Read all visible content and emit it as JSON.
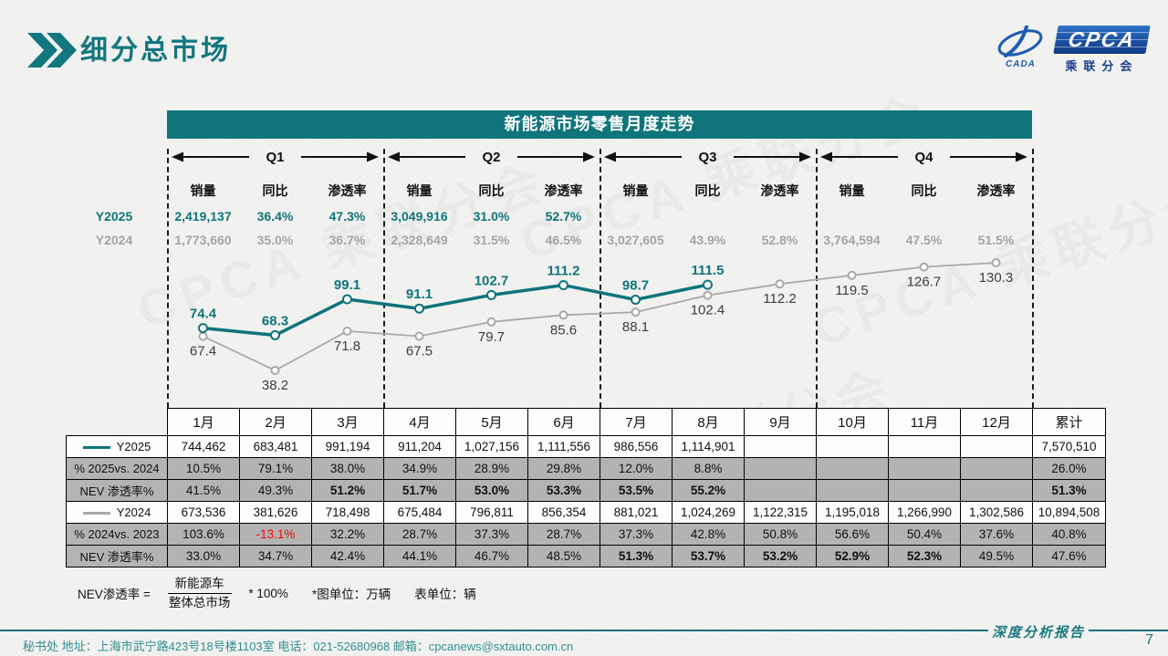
{
  "slide": {
    "title": "细分总市场",
    "page_number": "7",
    "footer_left": "秘书处   地址：上海市武宁路423号18号楼1103室 电话：021-52680968   邮箱：cpcanews@sxtauto.com.cn",
    "footer_right": "深度分析报告",
    "watermark": "CPCA 乘联分会"
  },
  "logo": {
    "brand": "CPCA",
    "sub": "乘联分会",
    "emblem_text": "CADA"
  },
  "panel": {
    "title": "新能源市场零售月度走势"
  },
  "quarter_header": {
    "col_labels": [
      "销量",
      "同比",
      "渗透率"
    ],
    "row_labels": [
      "Y2025",
      "Y2024"
    ],
    "quarters": [
      {
        "label": "Q1",
        "y2025": [
          "2,419,137",
          "36.4%",
          "47.3%"
        ],
        "y2024": [
          "1,773,660",
          "35.0%",
          "36.7%"
        ]
      },
      {
        "label": "Q2",
        "y2025": [
          "3,049,916",
          "31.0%",
          "52.7%"
        ],
        "y2024": [
          "2,328,649",
          "31.5%",
          "46.5%"
        ]
      },
      {
        "label": "Q3",
        "y2025": [
          "",
          "",
          ""
        ],
        "y2024": [
          "3,027,605",
          "43.9%",
          "52.8%"
        ]
      },
      {
        "label": "Q4",
        "y2025": [
          "",
          "",
          ""
        ],
        "y2024": [
          "3,764,594",
          "47.5%",
          "51.5%"
        ]
      }
    ]
  },
  "chart_data": {
    "type": "line",
    "title": "新能源市场零售月度走势",
    "unit": "万辆",
    "categories": [
      "1月",
      "2月",
      "3月",
      "4月",
      "5月",
      "6月",
      "7月",
      "8月",
      "9月",
      "10月",
      "11月",
      "12月"
    ],
    "series": [
      {
        "name": "Y2024",
        "color": "#a9a9a9",
        "values": [
          67.4,
          38.2,
          71.8,
          67.5,
          79.7,
          85.6,
          88.1,
          102.4,
          112.2,
          119.5,
          126.7,
          130.3
        ],
        "label_position": "below"
      },
      {
        "name": "Y2025",
        "color": "#0f747c",
        "values": [
          74.4,
          68.3,
          99.1,
          91.1,
          102.7,
          111.2,
          98.7,
          111.5
        ],
        "label_position": "above"
      }
    ],
    "scale_domain": [
      38.2,
      130.3
    ],
    "grid": false,
    "legend_position": "left-of-chart"
  },
  "table": {
    "columns": [
      "1月",
      "2月",
      "3月",
      "4月",
      "5月",
      "6月",
      "7月",
      "8月",
      "9月",
      "10月",
      "11月",
      "12月",
      "累计"
    ],
    "rows": [
      {
        "label": "Y2025",
        "legend_color": "#0f747c",
        "shaded": false,
        "cells": [
          "744,462",
          "683,481",
          "991,194",
          "911,204",
          "1,027,156",
          "1,111,556",
          "986,556",
          "1,114,901",
          "",
          "",
          "",
          "",
          "7,570,510"
        ]
      },
      {
        "label": "% 2025vs. 2024",
        "shaded": true,
        "cells": [
          "10.5%",
          "79.1%",
          "38.0%",
          "34.9%",
          "28.9%",
          "29.8%",
          "12.0%",
          "8.8%",
          "",
          "",
          "",
          "",
          "26.0%"
        ]
      },
      {
        "label": "NEV 渗透率%",
        "shaded": true,
        "bold": [
          2,
          3,
          4,
          5,
          6,
          7,
          12
        ],
        "cells": [
          "41.5%",
          "49.3%",
          "51.2%",
          "51.7%",
          "53.0%",
          "53.3%",
          "53.5%",
          "55.2%",
          "",
          "",
          "",
          "",
          "51.3%"
        ]
      },
      {
        "label": "Y2024",
        "legend_color": "#a9a9a9",
        "shaded": false,
        "cells": [
          "673,536",
          "381,626",
          "718,498",
          "675,484",
          "796,811",
          "856,354",
          "881,021",
          "1,024,269",
          "1,122,315",
          "1,195,018",
          "1,266,990",
          "1,302,586",
          "10,894,508"
        ]
      },
      {
        "label": "% 2024vs. 2023",
        "shaded": true,
        "red": [
          1
        ],
        "cells": [
          "103.6%",
          "-13.1%",
          "32.2%",
          "28.7%",
          "37.3%",
          "28.7%",
          "37.3%",
          "42.8%",
          "50.8%",
          "56.6%",
          "50.4%",
          "37.6%",
          "40.8%"
        ]
      },
      {
        "label": "NEV 渗透率%",
        "shaded": true,
        "bold": [
          6,
          7,
          8,
          9,
          10
        ],
        "cells": [
          "33.0%",
          "34.7%",
          "42.4%",
          "44.1%",
          "46.7%",
          "48.5%",
          "51.3%",
          "53.7%",
          "53.2%",
          "52.9%",
          "52.3%",
          "49.5%",
          "47.6%"
        ]
      }
    ]
  },
  "footnote": {
    "lhs": "NEV渗透率 =",
    "numerator": "新能源车",
    "denominator": "整体总市场",
    "rhs": "* 100%",
    "note_chart": "*图单位：万辆",
    "note_table": "表单位：辆"
  }
}
